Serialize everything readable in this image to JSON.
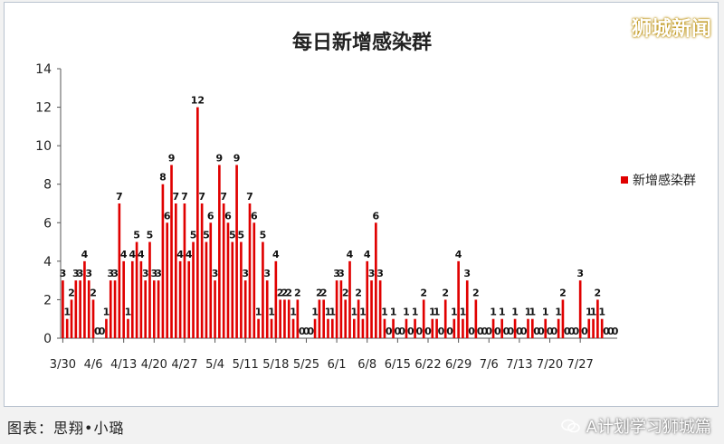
{
  "watermark": "狮城新闻",
  "footer": "图表：思翔•小璐",
  "wechat": "A计划学习狮城篇",
  "icons": {
    "wechat": "wechat-icon"
  },
  "colors": {
    "bar": "#e00000",
    "axis": "#555555",
    "text": "#222222"
  },
  "chart_data": {
    "type": "bar",
    "title": "每日新增感染群",
    "legend": "新增感染群",
    "legend_position": "right",
    "grid": false,
    "ylim": [
      0,
      14
    ],
    "yticks": [
      0,
      2,
      4,
      6,
      8,
      10,
      12,
      14
    ],
    "x_tick_labels": [
      "3/30",
      "4/6",
      "4/13",
      "4/20",
      "4/27",
      "5/4",
      "5/11",
      "5/18",
      "5/25",
      "6/1",
      "6/8",
      "6/15",
      "6/22",
      "6/29",
      "7/6",
      "7/13",
      "7/20",
      "7/27"
    ],
    "start_date": "3/30",
    "values": [
      3,
      1,
      2,
      3,
      3,
      4,
      3,
      2,
      0,
      0,
      1,
      3,
      3,
      7,
      4,
      1,
      4,
      5,
      4,
      3,
      5,
      3,
      3,
      8,
      6,
      9,
      7,
      4,
      7,
      4,
      5,
      12,
      7,
      5,
      6,
      3,
      9,
      7,
      6,
      5,
      9,
      5,
      3,
      7,
      6,
      1,
      5,
      3,
      1,
      4,
      2,
      2,
      2,
      1,
      2,
      0,
      0,
      0,
      1,
      2,
      2,
      1,
      1,
      3,
      3,
      2,
      4,
      1,
      2,
      1,
      4,
      3,
      6,
      3,
      1,
      0,
      1,
      0,
      0,
      1,
      0,
      1,
      0,
      2,
      0,
      1,
      1,
      0,
      2,
      0,
      1,
      4,
      1,
      3,
      0,
      2,
      0,
      0,
      0,
      1,
      0,
      1,
      0,
      0,
      1,
      0,
      0,
      1,
      1,
      0,
      0,
      1,
      0,
      0,
      1,
      2,
      0,
      0,
      0,
      3,
      0,
      1,
      1,
      2,
      1,
      0,
      0,
      0
    ]
  }
}
